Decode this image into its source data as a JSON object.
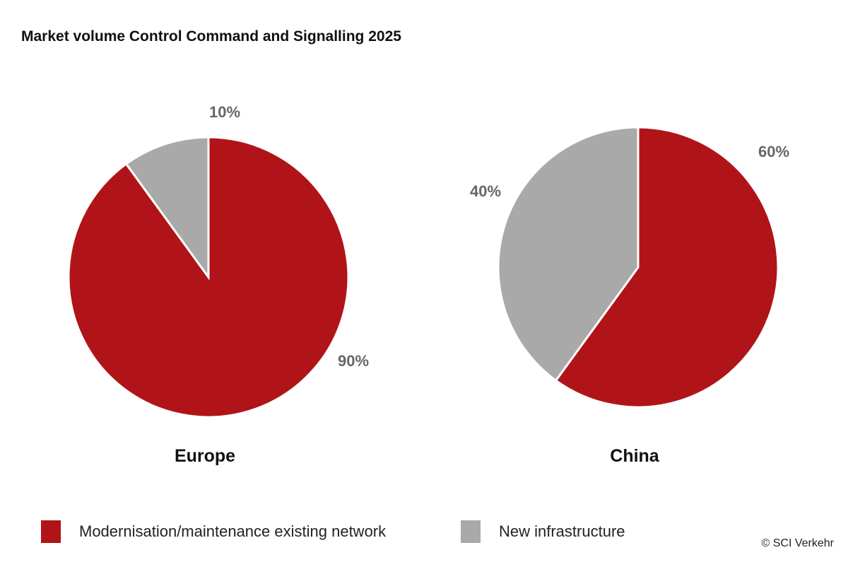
{
  "chart_data": {
    "type": "pie",
    "title": "Market volume Control Command and Signalling 2025",
    "categories": [
      "Modernisation/maintenance existing network",
      "New infrastructure"
    ],
    "colors": [
      "#b11418",
      "#a9a9a9"
    ],
    "pies": [
      {
        "name": "Europe",
        "values": [
          90,
          10
        ],
        "labels": [
          "90%",
          "10%"
        ]
      },
      {
        "name": "China",
        "values": [
          60,
          40
        ],
        "labels": [
          "60%",
          "40%"
        ]
      }
    ],
    "legend_position": "bottom"
  },
  "credit": "© SCI Verkehr"
}
